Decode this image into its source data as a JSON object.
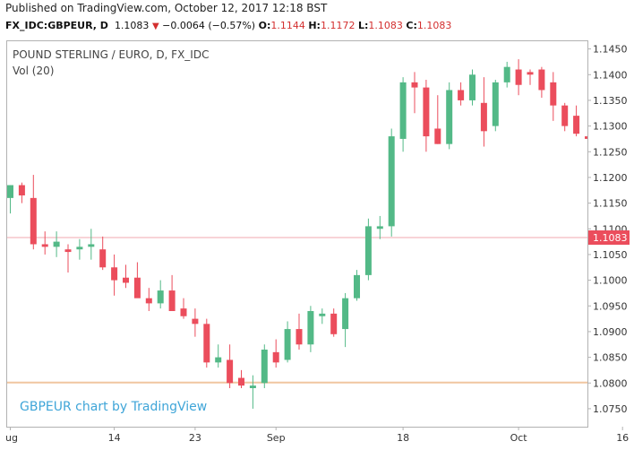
{
  "header": {
    "published": "Published on TradingView.com, October 12, 2017 12:18 BST"
  },
  "quote": {
    "symbol": "FX_IDC:GBPEUR, D",
    "last": "1.1083",
    "arrow": "▼",
    "change": "−0.0064 (−0.57%)",
    "o_label": "O:",
    "o": "1.1144",
    "h_label": "H:",
    "h": "1.1172",
    "l_label": "L:",
    "l": "1.1083",
    "c_label": "C:",
    "c": "1.1083"
  },
  "legend": {
    "title": "POUND STERLING / EURO, D, FX_IDC",
    "volume": "Vol (20)"
  },
  "watermark": "GBPEUR chart by TradingView",
  "colors": {
    "up": "#53b987",
    "down": "#eb4d5c",
    "price_line": "#f0a9af",
    "price_label_bg": "#eb4d5c",
    "volume_line": "#f0c6a0",
    "watermark": "#3fa5d8"
  },
  "chart_data": {
    "type": "candlestick",
    "ylim": [
      1.0715,
      1.1465
    ],
    "y_ticks": [
      "1.0750",
      "1.0800",
      "1.0850",
      "1.0900",
      "1.0950",
      "1.1000",
      "1.1050",
      "1.1100",
      "1.1150",
      "1.1200",
      "1.1250",
      "1.1300",
      "1.1350",
      "1.1400",
      "1.1450"
    ],
    "x_ticks": [
      {
        "label": "ug",
        "index": 0
      },
      {
        "label": "14",
        "index": 9
      },
      {
        "label": "23",
        "index": 16
      },
      {
        "label": "Sep",
        "index": 23
      },
      {
        "label": "18",
        "index": 34
      },
      {
        "label": "Oct",
        "index": 44
      },
      {
        "label": "16",
        "index": 53
      }
    ],
    "last_price": "1.1083",
    "last_price_value": 1.1083,
    "volume_value": 1.0801,
    "candles": [
      {
        "o": 1.116,
        "h": 1.1185,
        "l": 1.113,
        "c": 1.1185
      },
      {
        "o": 1.1185,
        "h": 1.119,
        "l": 1.115,
        "c": 1.1165
      },
      {
        "o": 1.116,
        "h": 1.1205,
        "l": 1.106,
        "c": 1.107
      },
      {
        "o": 1.107,
        "h": 1.1095,
        "l": 1.105,
        "c": 1.1065
      },
      {
        "o": 1.1065,
        "h": 1.1095,
        "l": 1.1045,
        "c": 1.1075
      },
      {
        "o": 1.106,
        "h": 1.107,
        "l": 1.1015,
        "c": 1.1055
      },
      {
        "o": 1.106,
        "h": 1.108,
        "l": 1.104,
        "c": 1.1065
      },
      {
        "o": 1.1065,
        "h": 1.11,
        "l": 1.104,
        "c": 1.107
      },
      {
        "o": 1.106,
        "h": 1.1085,
        "l": 1.102,
        "c": 1.1025
      },
      {
        "o": 1.1025,
        "h": 1.105,
        "l": 1.097,
        "c": 1.1
      },
      {
        "o": 1.1005,
        "h": 1.103,
        "l": 1.0985,
        "c": 1.0995
      },
      {
        "o": 1.1005,
        "h": 1.1035,
        "l": 1.097,
        "c": 1.0965
      },
      {
        "o": 1.0965,
        "h": 1.0985,
        "l": 1.094,
        "c": 1.0955
      },
      {
        "o": 1.0955,
        "h": 1.1,
        "l": 1.0945,
        "c": 1.098
      },
      {
        "o": 1.098,
        "h": 1.101,
        "l": 1.094,
        "c": 1.094
      },
      {
        "o": 1.0945,
        "h": 1.0965,
        "l": 1.0925,
        "c": 1.093
      },
      {
        "o": 1.0925,
        "h": 1.0945,
        "l": 1.089,
        "c": 1.0915
      },
      {
        "o": 1.0915,
        "h": 1.0925,
        "l": 1.083,
        "c": 1.084
      },
      {
        "o": 1.084,
        "h": 1.0875,
        "l": 1.083,
        "c": 1.085
      },
      {
        "o": 1.0845,
        "h": 1.0875,
        "l": 1.079,
        "c": 1.08
      },
      {
        "o": 1.081,
        "h": 1.0825,
        "l": 1.079,
        "c": 1.0795
      },
      {
        "o": 1.079,
        "h": 1.0815,
        "l": 1.075,
        "c": 1.0795
      },
      {
        "o": 1.08,
        "h": 1.0875,
        "l": 1.079,
        "c": 1.0865
      },
      {
        "o": 1.086,
        "h": 1.0885,
        "l": 1.083,
        "c": 1.084
      },
      {
        "o": 1.0845,
        "h": 1.092,
        "l": 1.084,
        "c": 1.0905
      },
      {
        "o": 1.0905,
        "h": 1.0935,
        "l": 1.0865,
        "c": 1.0875
      },
      {
        "o": 1.0875,
        "h": 1.095,
        "l": 1.086,
        "c": 1.094
      },
      {
        "o": 1.093,
        "h": 1.0945,
        "l": 1.0915,
        "c": 1.0935
      },
      {
        "o": 1.0935,
        "h": 1.0945,
        "l": 1.089,
        "c": 1.0895
      },
      {
        "o": 1.0905,
        "h": 1.0975,
        "l": 1.087,
        "c": 1.0965
      },
      {
        "o": 1.0965,
        "h": 1.102,
        "l": 1.096,
        "c": 1.101
      },
      {
        "o": 1.101,
        "h": 1.112,
        "l": 1.1,
        "c": 1.1105
      },
      {
        "o": 1.11,
        "h": 1.1125,
        "l": 1.108,
        "c": 1.1105
      },
      {
        "o": 1.1105,
        "h": 1.1295,
        "l": 1.1085,
        "c": 1.128
      },
      {
        "o": 1.1275,
        "h": 1.1395,
        "l": 1.125,
        "c": 1.1385
      },
      {
        "o": 1.1385,
        "h": 1.1405,
        "l": 1.1325,
        "c": 1.1375
      },
      {
        "o": 1.1375,
        "h": 1.139,
        "l": 1.125,
        "c": 1.128
      },
      {
        "o": 1.1295,
        "h": 1.136,
        "l": 1.1265,
        "c": 1.1265
      },
      {
        "o": 1.1265,
        "h": 1.1385,
        "l": 1.1255,
        "c": 1.137
      },
      {
        "o": 1.137,
        "h": 1.1385,
        "l": 1.134,
        "c": 1.135
      },
      {
        "o": 1.135,
        "h": 1.141,
        "l": 1.134,
        "c": 1.14
      },
      {
        "o": 1.1345,
        "h": 1.1395,
        "l": 1.126,
        "c": 1.129
      },
      {
        "o": 1.13,
        "h": 1.139,
        "l": 1.129,
        "c": 1.1385
      },
      {
        "o": 1.1385,
        "h": 1.1425,
        "l": 1.1375,
        "c": 1.1415
      },
      {
        "o": 1.141,
        "h": 1.143,
        "l": 1.136,
        "c": 1.138
      },
      {
        "o": 1.1405,
        "h": 1.141,
        "l": 1.138,
        "c": 1.14
      },
      {
        "o": 1.141,
        "h": 1.1415,
        "l": 1.1355,
        "c": 1.137
      },
      {
        "o": 1.1385,
        "h": 1.1405,
        "l": 1.131,
        "c": 1.134
      },
      {
        "o": 1.134,
        "h": 1.1345,
        "l": 1.129,
        "c": 1.13
      },
      {
        "o": 1.132,
        "h": 1.134,
        "l": 1.128,
        "c": 1.1285
      },
      {
        "o": 1.128,
        "h": 1.1295,
        "l": 1.126,
        "c": 1.1275
      },
      {
        "o": 1.1265,
        "h": 1.1275,
        "l": 1.12,
        "c": 1.121
      },
      {
        "o": 1.1205,
        "h": 1.1215,
        "l": 1.1125,
        "c": 1.1135
      },
      {
        "o": 1.113,
        "h": 1.1215,
        "l": 1.1125,
        "c": 1.12
      },
      {
        "o": 1.1195,
        "h": 1.121,
        "l": 1.118,
        "c": 1.1185
      },
      {
        "o": 1.118,
        "h": 1.12,
        "l": 1.113,
        "c": 1.115
      },
      {
        "o": 1.1144,
        "h": 1.1172,
        "l": 1.1083,
        "c": 1.1083
      }
    ]
  }
}
